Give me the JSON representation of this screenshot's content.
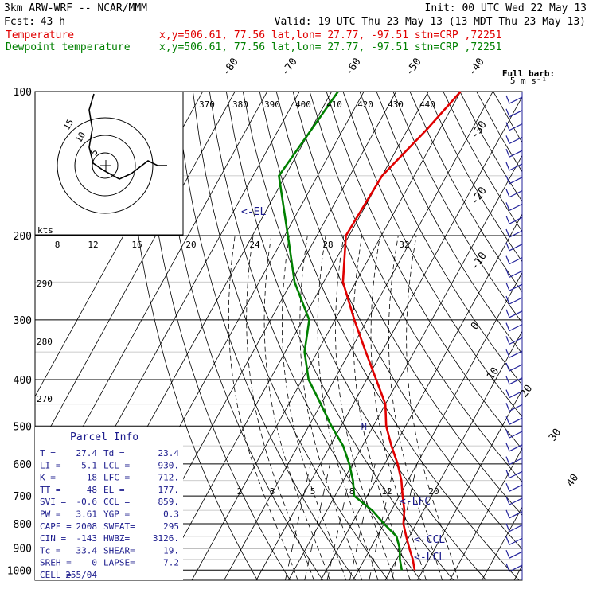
{
  "header": {
    "model": "3km ARW-WRF -- NCAR/MMM",
    "init": "Init: 00 UTC Wed 22 May 13",
    "fcst_label": "Fcst:",
    "fcst_value": "43 h",
    "valid": "Valid: 19 UTC Thu 23 May 13 (13 MDT Thu 23 May 13)",
    "series": [
      {
        "name": "Temperature",
        "loc": "x,y=506.61, 77.56   lat,lon= 27.77, -97.51   stn=CRP ,72251",
        "color": "#e00000"
      },
      {
        "name": "Dewpoint temperature",
        "loc": "x,y=506.61, 77.56   lat,lon= 27.77, -97.51   stn=CRP ,72251",
        "color": "#008000"
      }
    ]
  },
  "barb_legend": {
    "line1": "Full barb:",
    "line2": "5 m s⁻¹"
  },
  "hodograph": {
    "units": "kts",
    "ring_labels": [
      "5",
      "10",
      "15"
    ]
  },
  "parcel_info": {
    "title": "Parcel Info",
    "rows": [
      [
        "T  =",
        "27.4",
        "Td =",
        "23.4"
      ],
      [
        "LI =",
        "-5.1",
        "LCL =",
        "930."
      ],
      [
        "K  =",
        "18",
        "LFC =",
        "712."
      ],
      [
        "TT =",
        "48",
        "EL =",
        "177."
      ],
      [
        "SVI =",
        "-0.6",
        "CCL =",
        "859."
      ],
      [
        "PW =",
        "3.61",
        "YGP =",
        "0.3"
      ],
      [
        "CAPE =",
        "2008",
        "SWEAT=",
        "295"
      ],
      [
        "CIN =",
        "-143",
        "HWBZ=",
        "3126."
      ],
      [
        "Tc =",
        "33.4",
        "SHEAR=",
        "19."
      ],
      [
        "SREH =",
        "0",
        "LAPSE=",
        "7.2"
      ],
      [
        "CELL =",
        "255/04",
        "",
        ""
      ]
    ]
  },
  "markers": {
    "el": "<-EL",
    "lfc": "<-LFC",
    "ccl": "<-CCL",
    "lcl": "<-LCL",
    "m": "M"
  },
  "chart_data": {
    "type": "line",
    "title": "",
    "xlabel": "",
    "ylabel": "",
    "pressure_levels": [
      100,
      200,
      300,
      400,
      500,
      600,
      700,
      800,
      900,
      1000
    ],
    "isotherm_labels": [
      "-80",
      "-70",
      "-60",
      "-50",
      "-40",
      "-30",
      "-20",
      "-10",
      "0",
      "10",
      "20",
      "30",
      "40"
    ],
    "theta_labels": [
      "370",
      "380",
      "390",
      "400",
      "410",
      "420",
      "430",
      "440"
    ],
    "theta_labels_left": [
      "290",
      "280",
      "270"
    ],
    "mixing_ratio_labels": [
      "2",
      "3",
      "5",
      "8",
      "12",
      "20"
    ],
    "hodo_speed_labels": [
      "8",
      "12",
      "16",
      "20",
      "24",
      "28",
      "32"
    ],
    "series": [
      {
        "name": "Temperature",
        "color": "#e00000",
        "points": [
          [
            100,
            -40
          ],
          [
            120,
            -44
          ],
          [
            150,
            -50
          ],
          [
            200,
            -51
          ],
          [
            250,
            -44
          ],
          [
            300,
            -34
          ],
          [
            350,
            -25
          ],
          [
            400,
            -17
          ],
          [
            450,
            -10
          ],
          [
            500,
            -6
          ],
          [
            550,
            -1
          ],
          [
            600,
            4
          ],
          [
            650,
            8
          ],
          [
            700,
            11
          ],
          [
            750,
            14
          ],
          [
            800,
            16
          ],
          [
            850,
            19
          ],
          [
            900,
            22
          ],
          [
            950,
            25
          ],
          [
            1000,
            27.4
          ]
        ]
      },
      {
        "name": "Dewpoint temperature",
        "color": "#008000",
        "points": [
          [
            100,
            -78
          ],
          [
            150,
            -82
          ],
          [
            200,
            -69
          ],
          [
            250,
            -59
          ],
          [
            300,
            -48
          ],
          [
            350,
            -44
          ],
          [
            400,
            -38
          ],
          [
            450,
            -30
          ],
          [
            500,
            -23
          ],
          [
            550,
            -16
          ],
          [
            600,
            -11
          ],
          [
            650,
            -7
          ],
          [
            700,
            -4
          ],
          [
            750,
            4
          ],
          [
            800,
            10
          ],
          [
            850,
            16
          ],
          [
            900,
            19
          ],
          [
            950,
            21
          ],
          [
            1000,
            23.4
          ]
        ]
      }
    ],
    "wind_barbs_count": 36
  }
}
